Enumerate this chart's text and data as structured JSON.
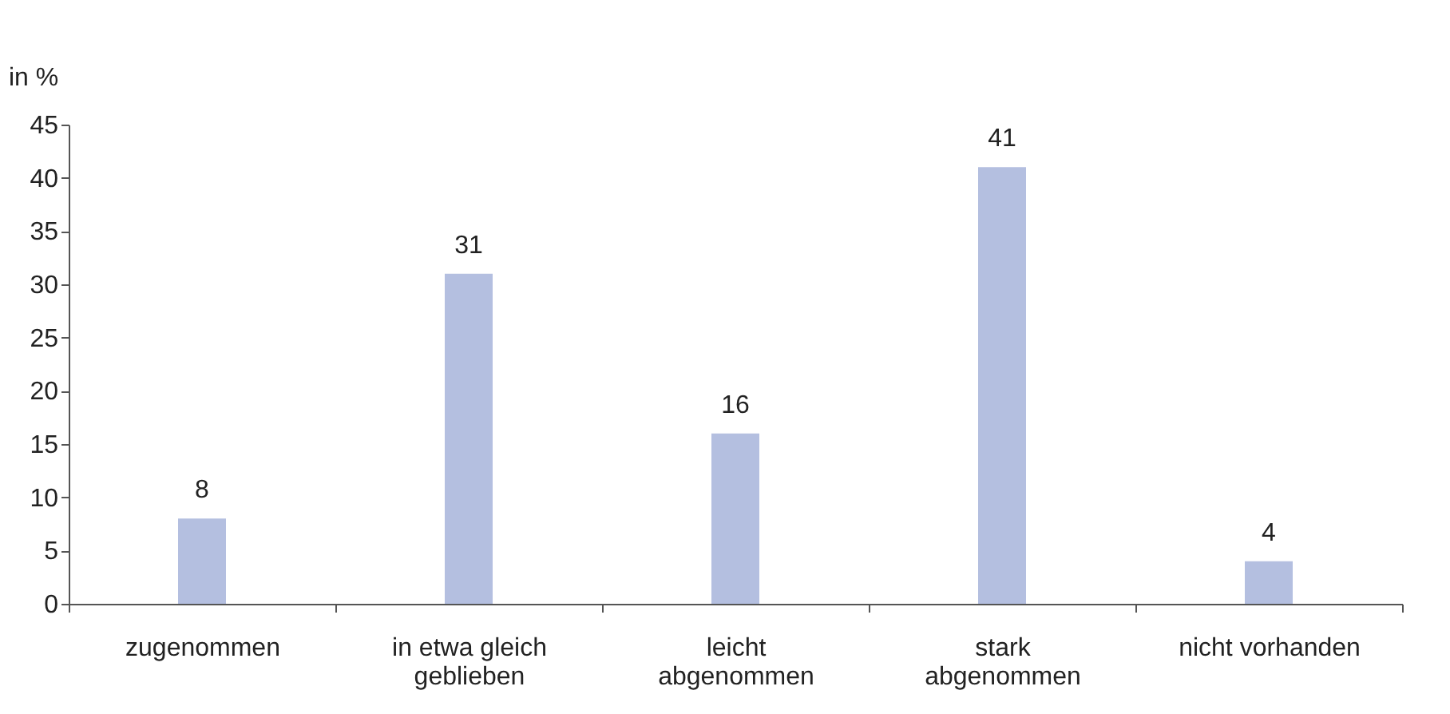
{
  "chart_data": {
    "type": "bar",
    "ylabel": "in %",
    "categories": [
      "zugenommen",
      "in etwa gleich geblieben",
      "leicht abgenommen",
      "stark abgenommen",
      "nicht vorhanden"
    ],
    "values": [
      8,
      31,
      16,
      41,
      4
    ],
    "color": "#b4bfe0",
    "ylim": [
      0,
      45
    ],
    "yticks": [
      0,
      5,
      10,
      15,
      20,
      25,
      30,
      35,
      40,
      45
    ],
    "grid": false,
    "data_labels": true
  }
}
